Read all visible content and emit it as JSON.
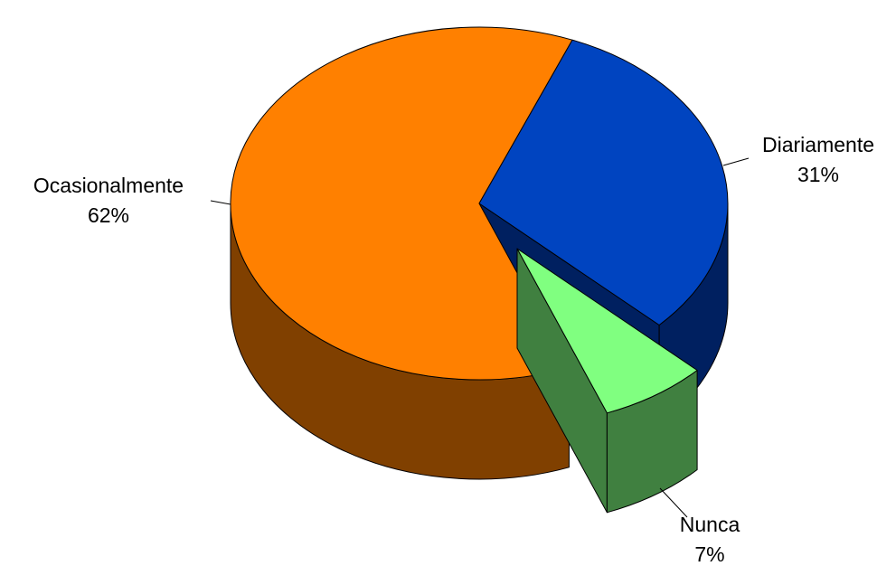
{
  "chart_data": {
    "type": "pie",
    "categories": [
      "Diariamente",
      "Nunca",
      "Ocasionalmente"
    ],
    "values": [
      31,
      7,
      62
    ],
    "value_labels": [
      "31%",
      "7%",
      "62%"
    ],
    "colors": [
      "#0044c0",
      "#80ff80",
      "#ff8000"
    ],
    "side_colors": [
      "#002060",
      "#408040",
      "#804000"
    ]
  }
}
